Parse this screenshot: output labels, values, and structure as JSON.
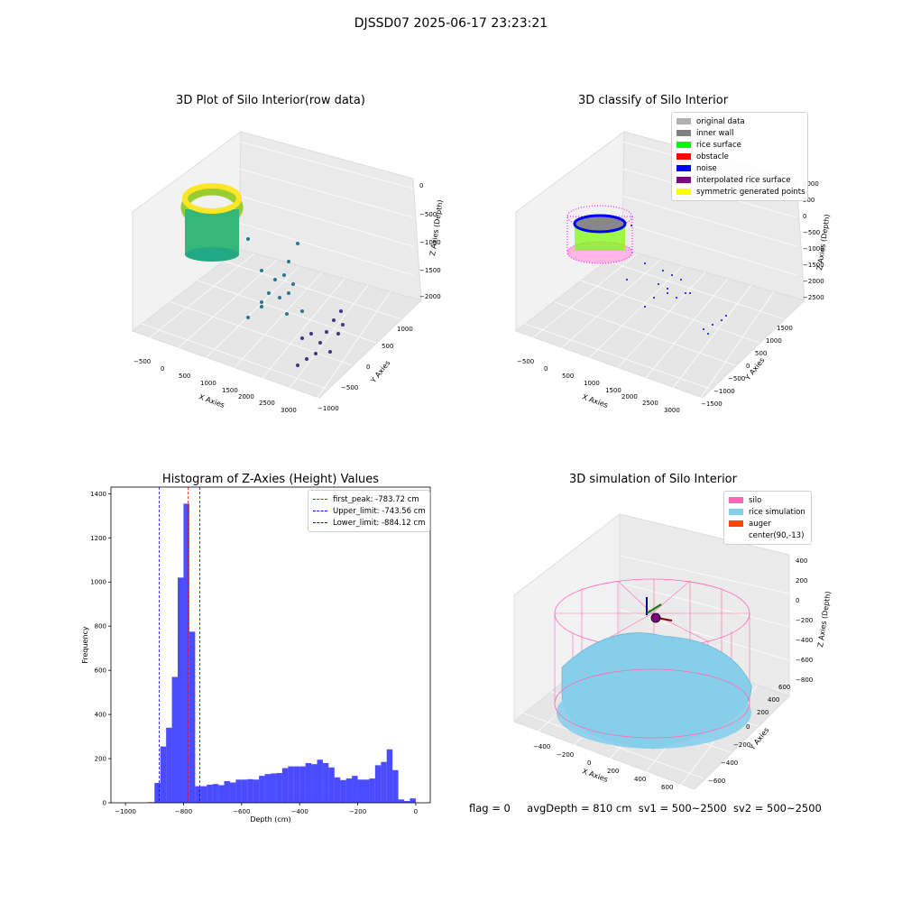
{
  "suptitle": "DJSSD07 2025-06-17 23:23:21",
  "panel1": {
    "title": "3D Plot of Silo Interior(row data)",
    "xlabel": "X Axies",
    "ylabel": "Y Axies",
    "zlabel": "Z Axies (Depth)",
    "xticks": [
      "−500",
      "0",
      "500",
      "1000",
      "1500",
      "2000",
      "2500",
      "3000"
    ],
    "yticks": [
      "−1000",
      "−500",
      "0",
      "500",
      "1000"
    ],
    "zticks": [
      "0",
      "−500",
      "−1000",
      "−1500",
      "−2000"
    ]
  },
  "panel2": {
    "title": "3D classify of Silo Interior",
    "xlabel": "X Axies",
    "ylabel": "Y Axies",
    "zlabel": "Z Axies (Depth)",
    "xticks": [
      "−500",
      "0",
      "500",
      "1000",
      "1500",
      "2000",
      "2500",
      "3000"
    ],
    "yticks": [
      "−1500",
      "−1000",
      "−500",
      "0",
      "500",
      "1000",
      "1500"
    ],
    "zticks": [
      "1000",
      "500",
      "0",
      "−500",
      "−1000",
      "−1500",
      "−2000",
      "−2500"
    ],
    "legend": [
      {
        "label": "original data",
        "color": "#b0b0b0"
      },
      {
        "label": "inner wall",
        "color": "#808080"
      },
      {
        "label": "rice surface",
        "color": "#00ff00"
      },
      {
        "label": "obstacle",
        "color": "#ff0000"
      },
      {
        "label": "noise",
        "color": "#0000ff"
      },
      {
        "label": "interpolated rice surface",
        "color": "#800080"
      },
      {
        "label": "symmetric generated points",
        "color": "#ffff00"
      }
    ]
  },
  "panel4": {
    "title": "3D simulation of Silo Interior",
    "xlabel": "X Axies",
    "ylabel": "Y Axies",
    "zlabel": "Z Axies (Depth)",
    "xticks": [
      "−400",
      "−200",
      "0",
      "200",
      "400",
      "600"
    ],
    "yticks": [
      "−600",
      "−400",
      "−200",
      "0",
      "200",
      "400",
      "600"
    ],
    "zticks": [
      "400",
      "200",
      "0",
      "−200",
      "−400",
      "−600",
      "−800"
    ],
    "legend": [
      {
        "label": "silo",
        "color": "#ff69b4"
      },
      {
        "label": "rice simulation",
        "color": "#87ceeb"
      },
      {
        "label": "auger",
        "color": "#ff4500"
      },
      {
        "label": "center(90,-13)",
        "color": "#ffffff"
      }
    ]
  },
  "status": {
    "flag": "flag = 0",
    "avg": "avgDepth = 810 cm",
    "sv1": "sv1 = 500~2500",
    "sv2": "sv2 = 500~2500"
  },
  "chart_data": [
    {
      "type": "bar",
      "title": "Histogram of Z-Axies (Height) Values",
      "xlabel": "Depth (cm)",
      "ylabel": "Frequency",
      "xlim": [
        -1050,
        50
      ],
      "ylim": [
        0,
        1430
      ],
      "xticks": [
        -1000,
        -800,
        -600,
        -400,
        -200,
        0
      ],
      "yticks": [
        0,
        200,
        400,
        600,
        800,
        1000,
        1200,
        1400
      ],
      "color": "#0000ff",
      "bins": [
        {
          "x0": -920,
          "x1": -900,
          "value": 3
        },
        {
          "x0": -900,
          "x1": -880,
          "value": 90
        },
        {
          "x0": -880,
          "x1": -860,
          "value": 255
        },
        {
          "x0": -860,
          "x1": -840,
          "value": 340
        },
        {
          "x0": -840,
          "x1": -820,
          "value": 570
        },
        {
          "x0": -820,
          "x1": -800,
          "value": 1020
        },
        {
          "x0": -800,
          "x1": -780,
          "value": 1355
        },
        {
          "x0": -780,
          "x1": -760,
          "value": 775
        },
        {
          "x0": -760,
          "x1": -740,
          "value": 75
        },
        {
          "x0": -740,
          "x1": -720,
          "value": 75
        },
        {
          "x0": -720,
          "x1": -700,
          "value": 82
        },
        {
          "x0": -700,
          "x1": -680,
          "value": 85
        },
        {
          "x0": -680,
          "x1": -660,
          "value": 80
        },
        {
          "x0": -660,
          "x1": -640,
          "value": 98
        },
        {
          "x0": -640,
          "x1": -620,
          "value": 92
        },
        {
          "x0": -620,
          "x1": -600,
          "value": 105
        },
        {
          "x0": -600,
          "x1": -580,
          "value": 105
        },
        {
          "x0": -580,
          "x1": -560,
          "value": 107
        },
        {
          "x0": -560,
          "x1": -540,
          "value": 105
        },
        {
          "x0": -540,
          "x1": -520,
          "value": 122
        },
        {
          "x0": -520,
          "x1": -500,
          "value": 130
        },
        {
          "x0": -500,
          "x1": -480,
          "value": 133
        },
        {
          "x0": -480,
          "x1": -460,
          "value": 135
        },
        {
          "x0": -460,
          "x1": -440,
          "value": 157
        },
        {
          "x0": -440,
          "x1": -420,
          "value": 165
        },
        {
          "x0": -420,
          "x1": -400,
          "value": 165
        },
        {
          "x0": -400,
          "x1": -380,
          "value": 165
        },
        {
          "x0": -380,
          "x1": -360,
          "value": 180
        },
        {
          "x0": -360,
          "x1": -340,
          "value": 175
        },
        {
          "x0": -340,
          "x1": -320,
          "value": 195
        },
        {
          "x0": -320,
          "x1": -300,
          "value": 180
        },
        {
          "x0": -300,
          "x1": -280,
          "value": 160
        },
        {
          "x0": -280,
          "x1": -260,
          "value": 115
        },
        {
          "x0": -260,
          "x1": -240,
          "value": 103
        },
        {
          "x0": -240,
          "x1": -220,
          "value": 110
        },
        {
          "x0": -220,
          "x1": -200,
          "value": 122
        },
        {
          "x0": -200,
          "x1": -180,
          "value": 105
        },
        {
          "x0": -180,
          "x1": -160,
          "value": 105
        },
        {
          "x0": -160,
          "x1": -140,
          "value": 110
        },
        {
          "x0": -140,
          "x1": -120,
          "value": 170
        },
        {
          "x0": -120,
          "x1": -100,
          "value": 185
        },
        {
          "x0": -100,
          "x1": -80,
          "value": 242
        },
        {
          "x0": -80,
          "x1": -60,
          "value": 148
        },
        {
          "x0": -60,
          "x1": -40,
          "value": 15
        },
        {
          "x0": -40,
          "x1": -20,
          "value": 8
        },
        {
          "x0": -20,
          "x1": 0,
          "value": 20
        }
      ],
      "vlines": [
        {
          "label": "first_peak: -783.72 cm",
          "x": -783.72,
          "color": "#ff0000"
        },
        {
          "label": "Upper_limit: -743.56 cm",
          "x": -743.56,
          "color": "#0000ff"
        },
        {
          "label": "Lower_limit: -884.12 cm",
          "x": -884.12,
          "color": "#0000ff"
        }
      ],
      "legend": "top-right"
    }
  ]
}
